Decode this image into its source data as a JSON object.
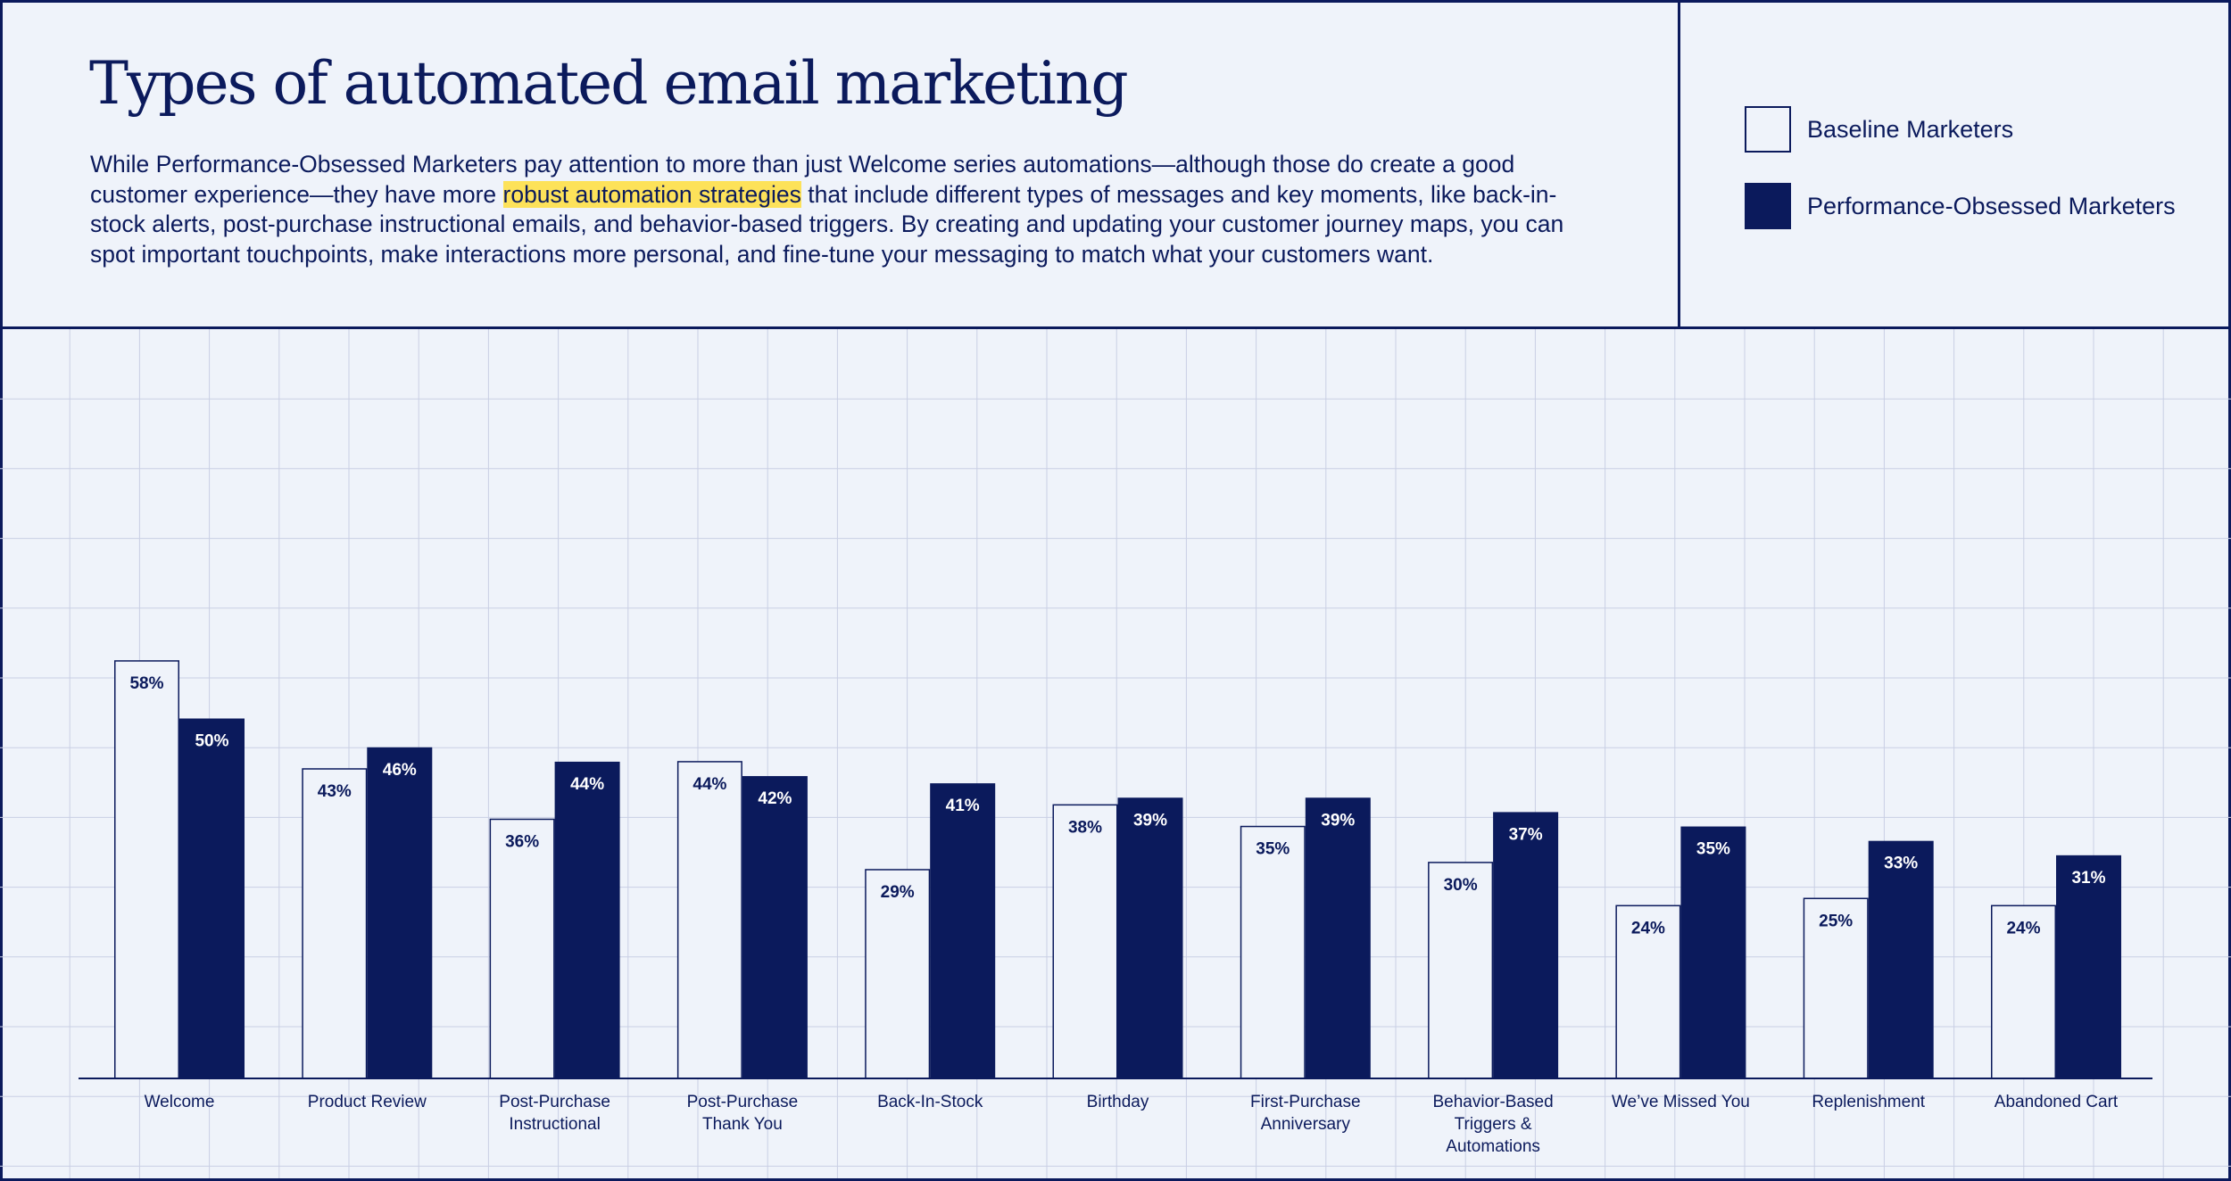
{
  "header": {
    "title": "Types of automated email marketing",
    "desc_before": "While Performance-Obsessed Marketers pay attention to more than just Welcome series automations—although those do create a good customer experience—they have more ",
    "desc_highlight": "robust automation strategies",
    "desc_after": " that include different types of messages and key moments, like back-in-stock alerts, post-purchase instructional emails, and behavior-based triggers. By creating and updating your customer journey maps, you can spot important touchpoints, make interactions more personal, and fine-tune your messaging to match what your customers want."
  },
  "legend": {
    "baseline": "Baseline Marketers",
    "perf": "Performance-Obsessed Marketers"
  },
  "colors": {
    "navy": "#0b1a5c",
    "background": "#eff3fa",
    "grid": "#c9cfe4",
    "highlight": "#fde25a"
  },
  "chart_data": {
    "type": "bar",
    "categories": [
      "Welcome",
      "Product Review",
      "Post-Purchase\nInstructional",
      "Post-Purchase\nThank You",
      "Back-In-Stock",
      "Birthday",
      "First-Purchase\nAnniversary",
      "Behavior-Based\nTriggers &\nAutomations",
      "We’ve Missed You",
      "Replenishment",
      "Abandoned Cart"
    ],
    "series": [
      {
        "name": "Baseline Marketers",
        "values": [
          58,
          43,
          36,
          44,
          29,
          38,
          35,
          30,
          24,
          25,
          24
        ]
      },
      {
        "name": "Performance-Obsessed Marketers",
        "values": [
          50,
          46,
          44,
          42,
          41,
          39,
          39,
          37,
          35,
          33,
          31
        ]
      }
    ],
    "value_suffix": "%",
    "ylim": [
      0,
      100
    ],
    "grid": true,
    "legend_position": "top-right"
  }
}
